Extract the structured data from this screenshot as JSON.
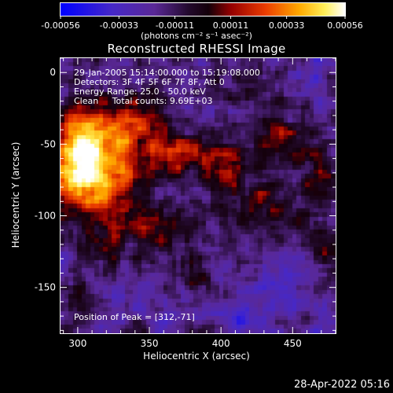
{
  "chart_data": {
    "type": "heatmap",
    "title": "Reconstructed RHESSI Image",
    "xlabel": "Heliocentric X (arcsec)",
    "ylabel": "Heliocentric Y (arcsec)",
    "xlim": [
      288,
      480
    ],
    "ylim": [
      -182,
      10
    ],
    "x_ticks": [
      300,
      350,
      400,
      450
    ],
    "y_ticks": [
      0,
      -50,
      -100,
      -150
    ],
    "grid": false,
    "colorbar": {
      "ticks": [
        -0.00056,
        -0.00033,
        -0.00011,
        0.00011,
        0.00033,
        0.00056
      ],
      "tick_labels": [
        "-0.00056",
        "-0.00033",
        "-0.00011",
        "0.00011",
        "0.00033",
        "0.00056"
      ],
      "unit_label": "(photons cm⁻² s⁻¹ asec⁻²)",
      "range": [
        -0.00056,
        0.00056
      ]
    },
    "annotations": [
      "29-Jan-2005 15:14:00.000 to 15:19:08.000",
      "Detectors: 3F 4F 5F 6F 7F 8F, Att 0",
      "Energy Range: 25.0 - 50.0 keV",
      "Clean     Total counts: 9.69E+03",
      "Position of Peak = [312,-71]"
    ],
    "peak": [
      312,
      -71
    ],
    "sources": [
      {
        "x": 312,
        "y": -71,
        "amp": 0.00056,
        "sx": 22,
        "sy": 20
      },
      {
        "x": 300,
        "y": -50,
        "amp": 0.0004,
        "sx": 14,
        "sy": 20
      },
      {
        "x": 335,
        "y": -35,
        "amp": 0.00038,
        "sx": 15,
        "sy": 12
      },
      {
        "x": 365,
        "y": -55,
        "amp": 0.00033,
        "sx": 14,
        "sy": 10
      },
      {
        "x": 400,
        "y": -65,
        "amp": 0.0003,
        "sx": 14,
        "sy": 12
      },
      {
        "x": 440,
        "y": -45,
        "amp": 0.00025,
        "sx": 14,
        "sy": 12
      },
      {
        "x": 470,
        "y": -70,
        "amp": 0.00022,
        "sx": 10,
        "sy": 14
      },
      {
        "x": 355,
        "y": -105,
        "amp": 0.00022,
        "sx": 16,
        "sy": 12
      },
      {
        "x": 425,
        "y": -95,
        "amp": 0.0002,
        "sx": 16,
        "sy": 14
      },
      {
        "x": 470,
        "y": -120,
        "amp": 0.00018,
        "sx": 10,
        "sy": 12
      },
      {
        "x": 320,
        "y": -125,
        "amp": 0.00015,
        "sx": 12,
        "sy": 10
      },
      {
        "x": 380,
        "y": -140,
        "amp": 0.00012,
        "sx": 12,
        "sy": 10
      },
      {
        "x": 300,
        "y": -160,
        "amp": 0.00013,
        "sx": 10,
        "sy": 10
      },
      {
        "x": 420,
        "y": -10,
        "amp": 0.00014,
        "sx": 12,
        "sy": 8
      },
      {
        "x": 450,
        "y": -150,
        "amp": -0.00012,
        "sx": 18,
        "sy": 14
      },
      {
        "x": 340,
        "y": -160,
        "amp": -0.0001,
        "sx": 16,
        "sy": 12
      },
      {
        "x": 410,
        "y": -170,
        "amp": -0.00011,
        "sx": 14,
        "sy": 10
      },
      {
        "x": 465,
        "y": 0,
        "amp": -8e-05,
        "sx": 12,
        "sy": 10
      }
    ]
  },
  "footer": {
    "timestamp": "28-Apr-2022 05:16"
  }
}
